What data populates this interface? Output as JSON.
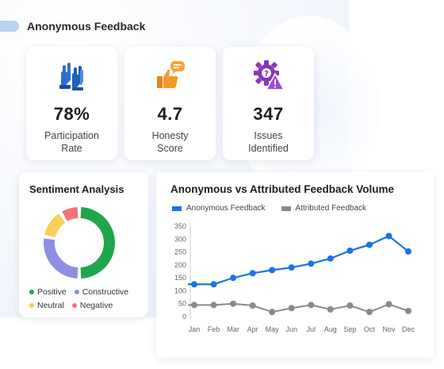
{
  "header": {
    "title": "Anonymous Feedback"
  },
  "metrics": [
    {
      "value": "78%",
      "label": "Participation\nRate",
      "icon": "raised-hands-icon"
    },
    {
      "value": "4.7",
      "label": "Honesty\nScore",
      "icon": "thumbs-up-chat-icon"
    },
    {
      "value": "347",
      "label": "Issues\nIdentified",
      "icon": "gear-warning-icon"
    }
  ],
  "sentiment": {
    "title": "Sentiment Analysis",
    "chart_data": {
      "type": "pie",
      "title": "Sentiment Analysis",
      "labels": [
        "Positive",
        "Constructive",
        "Neutral",
        "Negative"
      ],
      "values": [
        45,
        25,
        12,
        8
      ],
      "colors": [
        "#1fa64a",
        "#8e8fe4",
        "#f7cf5a",
        "#f07474"
      ]
    }
  },
  "volume": {
    "title": "Anonymous vs Attributed Feedback Volume",
    "chart_data": {
      "type": "line",
      "title": "Anonymous vs Attributed Feedback Volume",
      "categories": [
        "Jan",
        "Feb",
        "Mar",
        "Apr",
        "May",
        "Jun",
        "Jul",
        "Aug",
        "Sep",
        "Oct",
        "Nov",
        "Dec"
      ],
      "series": [
        {
          "name": "Anonymous Feedback",
          "color": "#1a73e8",
          "values": [
            125,
            125,
            150,
            168,
            180,
            190,
            205,
            225,
            255,
            278,
            312,
            252
          ]
        },
        {
          "name": "Attributed Feedback",
          "color": "#8a8a8a",
          "values": [
            45,
            45,
            50,
            43,
            18,
            33,
            45,
            28,
            43,
            18,
            48,
            22
          ]
        }
      ],
      "yticks": [
        0,
        50,
        100,
        150,
        200,
        250,
        300,
        350
      ],
      "ylim": [
        0,
        350
      ],
      "grid": false
    }
  }
}
